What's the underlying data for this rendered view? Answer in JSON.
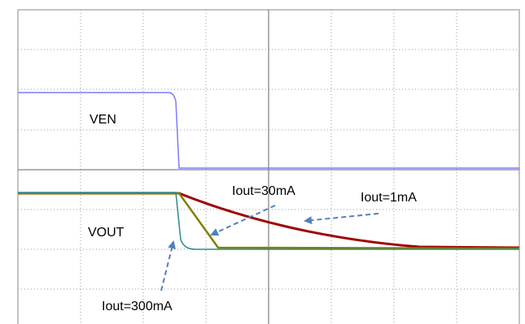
{
  "traces": {
    "ven": "VEN",
    "vout": "VOUT"
  },
  "annotations": {
    "iout_30": "Iout=30mA",
    "iout_1": "Iout=1mA",
    "iout_300": "Iout=300mA"
  }
}
